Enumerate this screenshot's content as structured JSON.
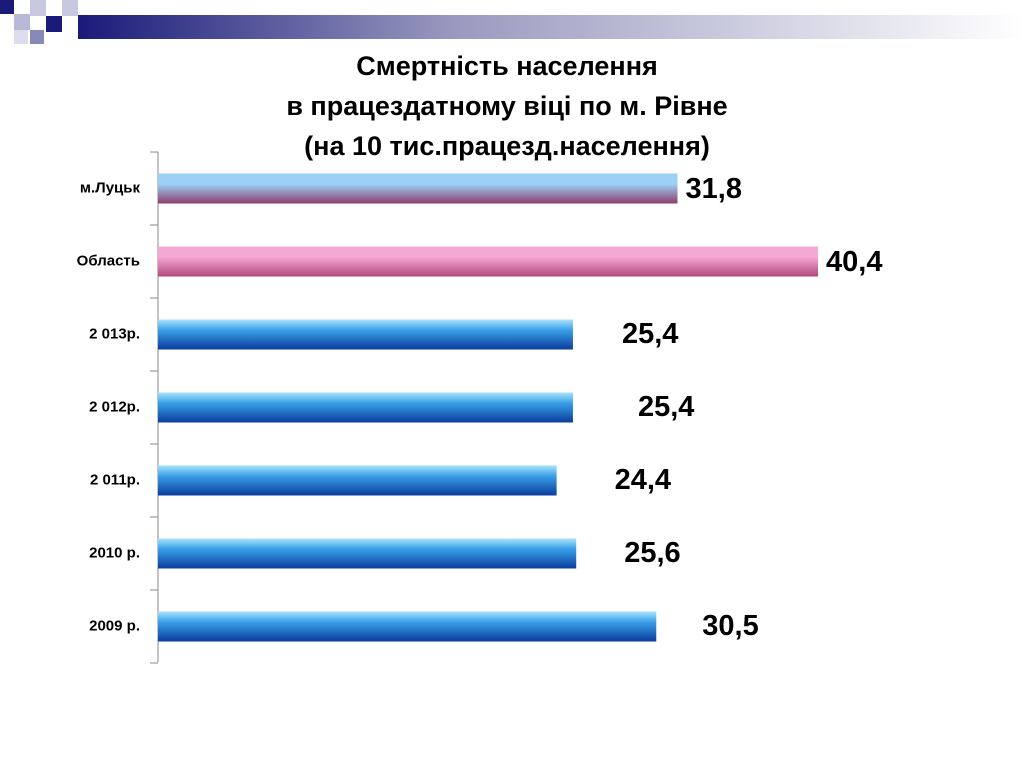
{
  "chart_data": {
    "type": "hbar",
    "title": [
      "Смертність населення",
      "в працездатному віці по м. Рівне",
      "(на 10 тис.працезд.населення)"
    ],
    "categories": [
      "м.Луцьк",
      "Область",
      "2 013р.",
      "2 012р.",
      "2 011р.",
      "2010 р.",
      "2009 р."
    ],
    "values": [
      31.8,
      40.4,
      25.4,
      25.4,
      24.4,
      25.6,
      30.5
    ],
    "value_labels": [
      "31,8",
      "40,4",
      "25,4",
      "25,4",
      "24,4",
      "25,6",
      "30,5"
    ],
    "colors": [
      "#8c3d6e",
      "#b04a7e",
      "#0a3d9c",
      "#0a3d9c",
      "#0a3d9c",
      "#0a3d9c",
      "#0a3d9c"
    ]
  }
}
